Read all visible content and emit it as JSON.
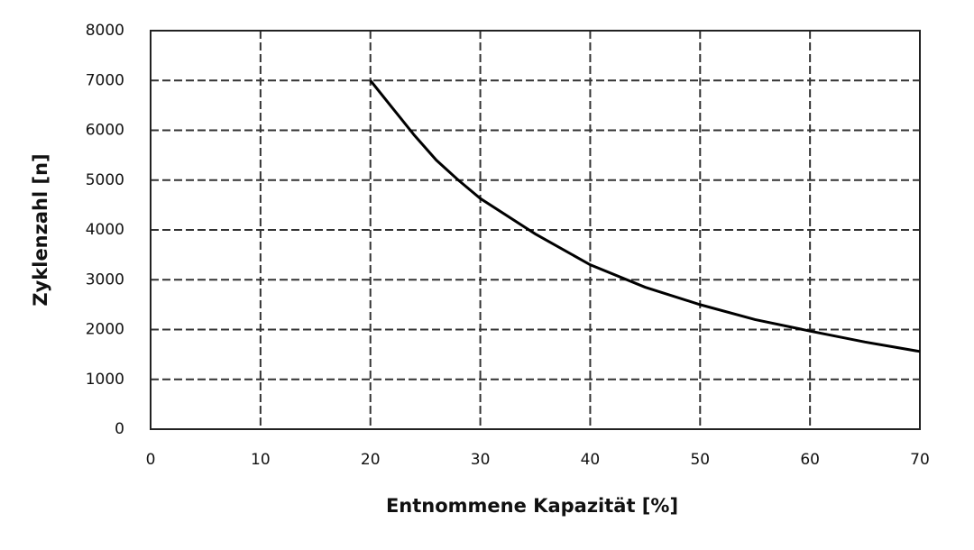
{
  "chart_data": {
    "type": "line",
    "x_label": "Entnommene Kapazität [%]",
    "y_label": "Zyklenzahl [n]",
    "x": [
      20,
      22,
      24,
      26,
      28,
      30,
      35,
      40,
      45,
      50,
      55,
      60,
      65,
      70
    ],
    "series": [
      {
        "color": "#000000",
        "values": [
          7000,
          6450,
          5900,
          5400,
          5000,
          4630,
          3920,
          3300,
          2850,
          2500,
          2200,
          1970,
          1750,
          1560
        ]
      }
    ],
    "xlim": [
      0,
      70
    ],
    "xticks": [
      0,
      10,
      20,
      30,
      40,
      50,
      60,
      70
    ],
    "ylim": [
      0,
      8000
    ],
    "yticks": [
      0,
      1000,
      2000,
      3000,
      4000,
      5000,
      6000,
      7000,
      8000
    ],
    "grid": true
  }
}
